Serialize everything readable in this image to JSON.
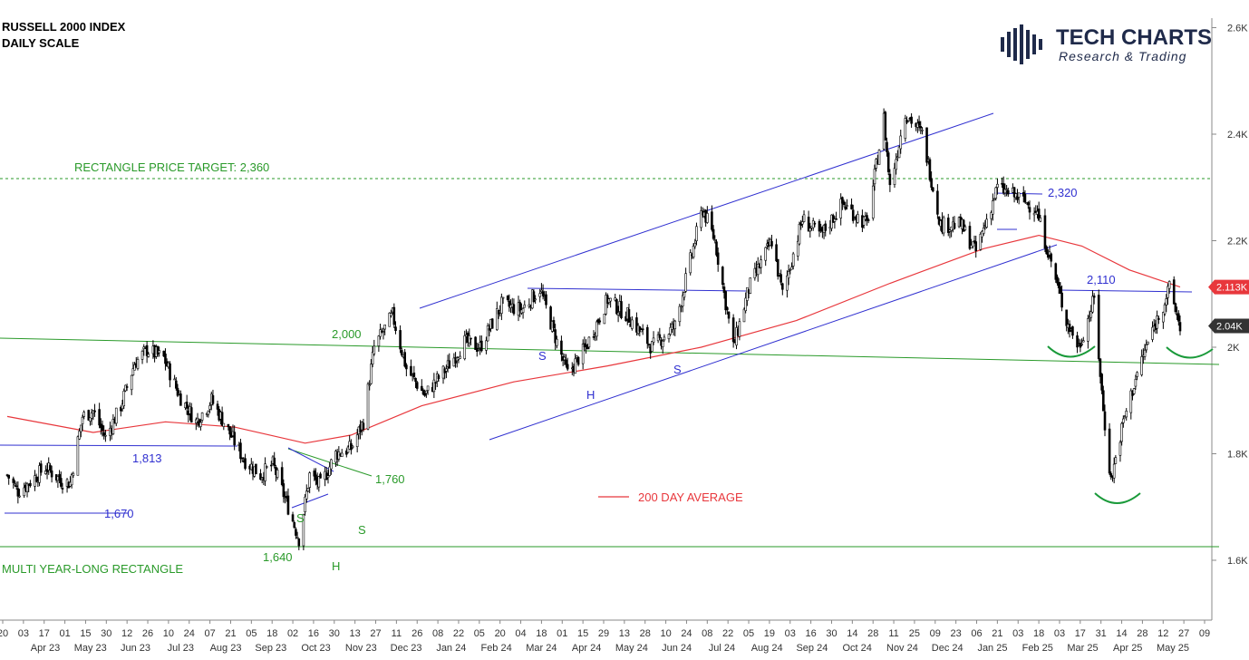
{
  "chart_data": {
    "type": "candlestick",
    "title": "RUSSELL 2000 INDEX",
    "subtitle": "DAILY SCALE",
    "logo": {
      "main": "TECH CHARTS",
      "sub": "Research & Trading"
    },
    "ylim": [
      1560,
      2680
    ],
    "y_ticks": [
      {
        "value": 1600,
        "label": "1.6K"
      },
      {
        "value": 1800,
        "label": "1.8K"
      },
      {
        "value": 2000,
        "label": "2K"
      },
      {
        "value": 2200,
        "label": "2.2K"
      },
      {
        "value": 2400,
        "label": "2.4K"
      },
      {
        "value": 2600,
        "label": "2.6K"
      }
    ],
    "x_day_ticks": [
      "20",
      "03",
      "17",
      "01",
      "15",
      "30",
      "12",
      "26",
      "10",
      "24",
      "07",
      "21",
      "05",
      "18",
      "02",
      "16",
      "30",
      "13",
      "27",
      "11",
      "26",
      "08",
      "22",
      "05",
      "20",
      "04",
      "18",
      "01",
      "15",
      "29",
      "13",
      "28",
      "10",
      "24",
      "08",
      "22",
      "05",
      "19",
      "03",
      "16",
      "30",
      "14",
      "28",
      "11",
      "25",
      "09",
      "23",
      "06",
      "21",
      "03",
      "18",
      "03",
      "17",
      "31",
      "14",
      "28",
      "12",
      "27",
      "09"
    ],
    "x_month_ticks": [
      "Apr 23",
      "May 23",
      "Jun 23",
      "Jul 23",
      "Aug 23",
      "Sep 23",
      "Oct 23",
      "Nov 23",
      "Dec 23",
      "Jan 24",
      "Feb 24",
      "Mar 24",
      "Apr 24",
      "May 24",
      "Jun 24",
      "Jul 24",
      "Aug 24",
      "Sep 24",
      "Oct 24",
      "Nov 24",
      "Dec 24",
      "Jan 25",
      "Feb 25",
      "Mar 25",
      "Apr 25",
      "May 25"
    ],
    "price_path": [
      {
        "date": "2023-04-20",
        "close": 1760
      },
      {
        "date": "2023-04-27",
        "close": 1730
      },
      {
        "date": "2023-05-04",
        "close": 1745
      },
      {
        "date": "2023-05-15",
        "close": 1775
      },
      {
        "date": "2023-05-25",
        "close": 1750
      },
      {
        "date": "2023-05-31",
        "close": 1745
      },
      {
        "date": "2023-06-08",
        "close": 1870
      },
      {
        "date": "2023-06-15",
        "close": 1880
      },
      {
        "date": "2023-06-23",
        "close": 1830
      },
      {
        "date": "2023-07-03",
        "close": 1890
      },
      {
        "date": "2023-07-12",
        "close": 1970
      },
      {
        "date": "2023-07-20",
        "close": 1995
      },
      {
        "date": "2023-07-31",
        "close": 1980
      },
      {
        "date": "2023-08-10",
        "close": 1910
      },
      {
        "date": "2023-08-21",
        "close": 1860
      },
      {
        "date": "2023-08-31",
        "close": 1900
      },
      {
        "date": "2023-09-08",
        "close": 1860
      },
      {
        "date": "2023-09-21",
        "close": 1790
      },
      {
        "date": "2023-10-02",
        "close": 1760
      },
      {
        "date": "2023-10-10",
        "close": 1780
      },
      {
        "date": "2023-10-20",
        "close": 1700
      },
      {
        "date": "2023-10-27",
        "close": 1640
      },
      {
        "date": "2023-11-03",
        "close": 1760
      },
      {
        "date": "2023-11-10",
        "close": 1740
      },
      {
        "date": "2023-11-20",
        "close": 1800
      },
      {
        "date": "2023-11-30",
        "close": 1810
      },
      {
        "date": "2023-12-08",
        "close": 1860
      },
      {
        "date": "2023-12-15",
        "close": 2000
      },
      {
        "date": "2023-12-27",
        "close": 2060
      },
      {
        "date": "2024-01-05",
        "close": 1960
      },
      {
        "date": "2024-01-17",
        "close": 1910
      },
      {
        "date": "2024-01-31",
        "close": 1960
      },
      {
        "date": "2024-02-12",
        "close": 2010
      },
      {
        "date": "2024-02-22",
        "close": 2000
      },
      {
        "date": "2024-03-07",
        "close": 2080
      },
      {
        "date": "2024-03-20",
        "close": 2070
      },
      {
        "date": "2024-04-01",
        "close": 2110
      },
      {
        "date": "2024-04-12",
        "close": 2010
      },
      {
        "date": "2024-04-19",
        "close": 1950
      },
      {
        "date": "2024-05-01",
        "close": 2000
      },
      {
        "date": "2024-05-15",
        "close": 2090
      },
      {
        "date": "2024-05-28",
        "close": 2060
      },
      {
        "date": "2024-06-13",
        "close": 2000
      },
      {
        "date": "2024-06-28",
        "close": 2040
      },
      {
        "date": "2024-07-11",
        "close": 2200
      },
      {
        "date": "2024-07-16",
        "close": 2260
      },
      {
        "date": "2024-07-24",
        "close": 2200
      },
      {
        "date": "2024-08-05",
        "close": 2000
      },
      {
        "date": "2024-08-15",
        "close": 2110
      },
      {
        "date": "2024-08-30",
        "close": 2200
      },
      {
        "date": "2024-09-06",
        "close": 2100
      },
      {
        "date": "2024-09-19",
        "close": 2240
      },
      {
        "date": "2024-10-01",
        "close": 2210
      },
      {
        "date": "2024-10-15",
        "close": 2270
      },
      {
        "date": "2024-10-31",
        "close": 2230
      },
      {
        "date": "2024-11-11",
        "close": 2430
      },
      {
        "date": "2024-11-15",
        "close": 2300
      },
      {
        "date": "2024-11-25",
        "close": 2440
      },
      {
        "date": "2024-12-06",
        "close": 2400
      },
      {
        "date": "2024-12-18",
        "close": 2230
      },
      {
        "date": "2024-12-31",
        "close": 2230
      },
      {
        "date": "2025-01-10",
        "close": 2180
      },
      {
        "date": "2025-01-24",
        "close": 2300
      },
      {
        "date": "2025-02-07",
        "close": 2280
      },
      {
        "date": "2025-02-18",
        "close": 2260
      },
      {
        "date": "2025-02-28",
        "close": 2160
      },
      {
        "date": "2025-03-10",
        "close": 2050
      },
      {
        "date": "2025-03-18",
        "close": 2000
      },
      {
        "date": "2025-03-28",
        "close": 2090
      },
      {
        "date": "2025-04-03",
        "close": 1880
      },
      {
        "date": "2025-04-08",
        "close": 1750
      },
      {
        "date": "2025-04-16",
        "close": 1860
      },
      {
        "date": "2025-04-25",
        "close": 1950
      },
      {
        "date": "2025-05-02",
        "close": 2010
      },
      {
        "date": "2025-05-12",
        "close": 2080
      },
      {
        "date": "2025-05-16",
        "close": 2110
      },
      {
        "date": "2025-05-23",
        "close": 2040
      }
    ],
    "ma200": [
      {
        "date": "2023-04-20",
        "value": 1870
      },
      {
        "date": "2023-06-15",
        "value": 1840
      },
      {
        "date": "2023-08-01",
        "value": 1860
      },
      {
        "date": "2023-09-15",
        "value": 1850
      },
      {
        "date": "2023-10-31",
        "value": 1820
      },
      {
        "date": "2023-11-30",
        "value": 1835
      },
      {
        "date": "2024-01-15",
        "value": 1890
      },
      {
        "date": "2024-03-15",
        "value": 1935
      },
      {
        "date": "2024-05-15",
        "value": 1965
      },
      {
        "date": "2024-07-15",
        "value": 2000
      },
      {
        "date": "2024-09-15",
        "value": 2050
      },
      {
        "date": "2024-11-15",
        "value": 2120
      },
      {
        "date": "2025-01-15",
        "value": 2185
      },
      {
        "date": "2025-02-20",
        "value": 2210
      },
      {
        "date": "2025-03-20",
        "value": 2190
      },
      {
        "date": "2025-04-20",
        "value": 2145
      },
      {
        "date": "2025-05-23",
        "value": 2113
      }
    ],
    "last_price": {
      "label": "2.04K",
      "value": 2040,
      "color": "#333333"
    },
    "ma_label": {
      "label": "2.113K",
      "value": 2113,
      "color": "#e8373c"
    },
    "legend": [
      {
        "name": "200 DAY AVERAGE",
        "color": "#e8373c"
      }
    ],
    "annotations": {
      "target": "RECTANGLE PRICE TARGET: 2,360",
      "rect_top": "2,000",
      "rect_label": "MULTI YEAR-LONG RECTANGLE",
      "levels": [
        "1,813",
        "1,670",
        "1,760",
        "1,640",
        "2,320",
        "2,110"
      ],
      "pattern_letters": [
        "S",
        "H",
        "S",
        "S",
        "H",
        "S"
      ]
    },
    "colors": {
      "price": "#000000",
      "ma": "#e8373c",
      "trend": "#3030d0",
      "rect": "#2a9a2a",
      "target": "#2a9a2a"
    }
  }
}
